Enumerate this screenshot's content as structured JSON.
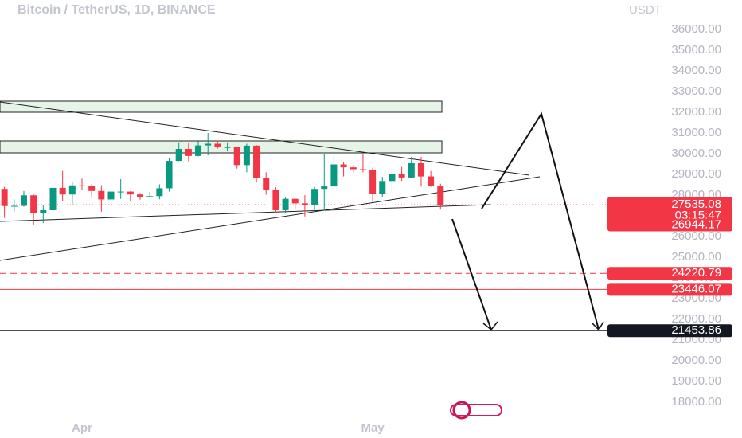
{
  "chart_data": {
    "type": "candlestick",
    "title": "Bitcoin / TetherUS, 1D, BINANCE",
    "y_axis_label": "USDT",
    "categories": [
      null,
      null,
      null,
      null,
      null,
      null,
      null,
      null,
      "Apr",
      null,
      null,
      null,
      null,
      null,
      null,
      null,
      null,
      null,
      null,
      null,
      null,
      null,
      null,
      null,
      null,
      null,
      null,
      null,
      null,
      null,
      null,
      null,
      null,
      null,
      null,
      null,
      null,
      null,
      "May",
      null,
      null,
      null,
      null,
      null,
      null,
      null
    ],
    "open": [
      28300,
      27470,
      27480,
      27990,
      27140,
      27270,
      28350,
      28030,
      28470,
      28450,
      28200,
      27790,
      28170,
      28170,
      28030,
      27920,
      27950,
      28330,
      29650,
      30230,
      29890,
      30400,
      30480,
      30320,
      30320,
      29450,
      30390,
      28820,
      28250,
      27270,
      27820,
      27600,
      27510,
      28300,
      28420,
      29480,
      29340,
      29250,
      29230,
      28070,
      28680,
      29030,
      28850,
      29540,
      28900,
      28430
    ],
    "high": [
      28400,
      27800,
      28200,
      28030,
      27500,
      29170,
      29170,
      28650,
      28800,
      28530,
      28480,
      28440,
      28770,
      28190,
      28100,
      28160,
      28520,
      29770,
      30550,
      30500,
      30600,
      31000,
      30620,
      30550,
      30320,
      30480,
      30420,
      29100,
      28380,
      27880,
      27820,
      28000,
      28400,
      30000,
      29900,
      29590,
      29450,
      29970,
      29330,
      28880,
      29270,
      29360,
      29850,
      29850,
      29160,
      28550
    ],
    "low": [
      26900,
      27180,
      27440,
      26550,
      26650,
      27250,
      27700,
      27530,
      28250,
      27870,
      27200,
      27650,
      27820,
      27720,
      27780,
      27880,
      27800,
      28170,
      29640,
      29630,
      29870,
      29920,
      30250,
      30130,
      29280,
      29100,
      28600,
      28020,
      27150,
      27140,
      27340,
      26970,
      27200,
      27250,
      28390,
      28900,
      29090,
      29100,
      27680,
      27880,
      28120,
      28690,
      28820,
      28410,
      28400,
      27300
    ],
    "close": [
      27470,
      27480,
      27990,
      27140,
      27270,
      28350,
      28030,
      28470,
      28450,
      28200,
      27790,
      28170,
      28170,
      28030,
      27920,
      27950,
      28330,
      29650,
      30230,
      29890,
      30400,
      30480,
      30320,
      30320,
      29450,
      30390,
      28820,
      28250,
      27270,
      27820,
      27600,
      27510,
      28300,
      28420,
      29480,
      29340,
      29250,
      29230,
      28070,
      28680,
      29030,
      28850,
      29540,
      28900,
      28430,
      27535.08
    ],
    "up_color": "#089981",
    "down_color": "#f23645",
    "countdown": "03:15:47",
    "ylim": [
      17500,
      37000
    ],
    "yticks": [
      {
        "value": 18000,
        "label": "18000.00"
      },
      {
        "value": 19000,
        "label": "19000.00"
      },
      {
        "value": 20000,
        "label": "20000.00"
      },
      {
        "value": 21000,
        "label": "21000.00"
      },
      {
        "value": 22000,
        "label": "22000.00"
      },
      {
        "value": 23000,
        "label": "23000.00"
      },
      {
        "value": 24000,
        "label": "24000.00"
      },
      {
        "value": 25000,
        "label": "25000.00"
      },
      {
        "value": 26000,
        "label": "26000.00"
      },
      {
        "value": 27000,
        "label": "27000.00"
      },
      {
        "value": 28000,
        "label": "28000.00"
      },
      {
        "value": 29000,
        "label": "29000.00"
      },
      {
        "value": 30000,
        "label": "30000.00"
      },
      {
        "value": 31000,
        "label": "31000.00"
      },
      {
        "value": 32000,
        "label": "32000.00"
      },
      {
        "value": 33000,
        "label": "33000.00"
      },
      {
        "value": 34000,
        "label": "34000.00"
      },
      {
        "value": 35000,
        "label": "35000.00"
      },
      {
        "value": 36000,
        "label": "36000.00"
      }
    ],
    "levels": [
      {
        "value": 26944.17,
        "color": "#f23645",
        "line": "solid"
      },
      {
        "value": 24220.79,
        "color": "#f23645",
        "line": "dashed"
      },
      {
        "value": 23446.07,
        "color": "#f23645",
        "line": "solid"
      },
      {
        "value": 21453.86,
        "color": "#131722",
        "line": "solid"
      }
    ]
  }
}
